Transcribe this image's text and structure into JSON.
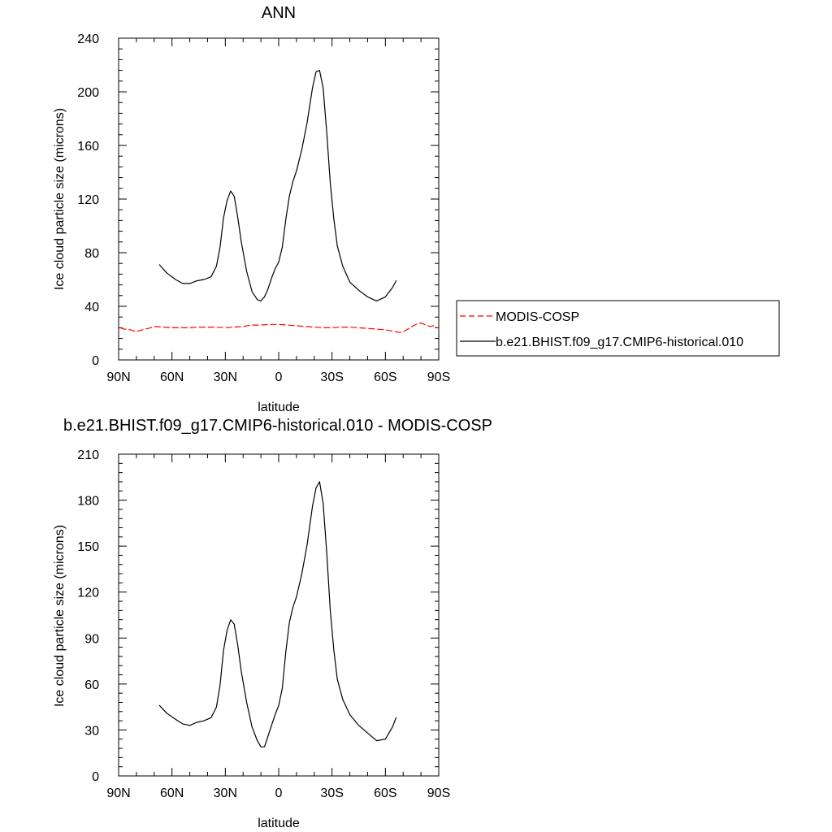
{
  "chart_data": [
    {
      "type": "line",
      "title": "ANN",
      "xlabel": "latitude",
      "ylabel": "Ice cloud particle size (microns)",
      "xlim": [
        90,
        -90
      ],
      "ylim": [
        0,
        240
      ],
      "x_ticks": [
        90,
        60,
        30,
        0,
        -30,
        -60,
        -90
      ],
      "x_tick_labels": [
        "90N",
        "60N",
        "30N",
        "0",
        "30S",
        "60S",
        "90S"
      ],
      "y_ticks": [
        0,
        40,
        80,
        120,
        160,
        200,
        240
      ],
      "y_tick_labels": [
        "0",
        "40",
        "80",
        "120",
        "160",
        "200",
        "240"
      ],
      "legend": "outside-right",
      "series": [
        {
          "name": "MODIS-COSP",
          "color": "#ff0000",
          "dash": true,
          "x": [
            89,
            87,
            85,
            82,
            80,
            78,
            75,
            72,
            70,
            65,
            60,
            55,
            50,
            45,
            40,
            35,
            30,
            25,
            20,
            15,
            10,
            5,
            0,
            -5,
            -10,
            -15,
            -20,
            -25,
            -30,
            -35,
            -40,
            -45,
            -50,
            -55,
            -60,
            -62,
            -64,
            -66,
            -68,
            -70,
            -72,
            -75,
            -78,
            -80,
            -82,
            -85,
            -87,
            -89
          ],
          "y": [
            24,
            23,
            23,
            22,
            21,
            22,
            23,
            24,
            25,
            24.5,
            24,
            24,
            24,
            24.5,
            24.5,
            24.5,
            24,
            24.5,
            25,
            26,
            26,
            26.5,
            26.5,
            26,
            25.5,
            25,
            24.5,
            24,
            24,
            24.5,
            24.5,
            24,
            23.5,
            23,
            22.5,
            22,
            21.5,
            21,
            20.5,
            21,
            22.5,
            25,
            27,
            27.5,
            26.5,
            25,
            25.5,
            24
          ]
        },
        {
          "name": "b.e21.BHIST.f09_g17.CMIP6-historical.010",
          "color": "#000000",
          "dash": false,
          "x": [
            67,
            63,
            58,
            54,
            50,
            46,
            42,
            38,
            35,
            33,
            31,
            29,
            27,
            25,
            23,
            21,
            18,
            15,
            12,
            10,
            8,
            6,
            4,
            2,
            0,
            -2,
            -4,
            -6,
            -8,
            -10,
            -13,
            -16,
            -19,
            -21,
            -23,
            -25,
            -27,
            -29,
            -31,
            -33,
            -36,
            -40,
            -45,
            -50,
            -55,
            -60,
            -64,
            -66
          ],
          "y": [
            71,
            65,
            60,
            57,
            57,
            59,
            60,
            62,
            70,
            84,
            106,
            119,
            126,
            122,
            106,
            88,
            66,
            51,
            45,
            44,
            47,
            53,
            61,
            68,
            73,
            84,
            105,
            122,
            133,
            141,
            157,
            177,
            203,
            215,
            216,
            203,
            170,
            132,
            105,
            85,
            70,
            58,
            52,
            47,
            44,
            47,
            54,
            59
          ]
        }
      ]
    },
    {
      "type": "line",
      "title": "b.e21.BHIST.f09_g17.CMIP6-historical.010 - MODIS-COSP",
      "xlabel": "latitude",
      "ylabel": "Ice cloud particle size (microns)",
      "xlim": [
        90,
        -90
      ],
      "ylim": [
        0,
        210
      ],
      "x_ticks": [
        90,
        60,
        30,
        0,
        -30,
        -60,
        -90
      ],
      "x_tick_labels": [
        "90N",
        "60N",
        "30N",
        "0",
        "30S",
        "60S",
        "90S"
      ],
      "y_ticks": [
        0,
        30,
        60,
        90,
        120,
        150,
        180,
        210
      ],
      "y_tick_labels": [
        "0",
        "30",
        "60",
        "90",
        "120",
        "150",
        "180",
        "210"
      ],
      "series": [
        {
          "color": "#000000",
          "dash": false,
          "x": [
            67,
            63,
            58,
            54,
            50,
            46,
            42,
            38,
            35,
            33,
            31,
            29,
            27,
            25,
            23,
            21,
            18,
            15,
            12,
            10,
            8,
            6,
            4,
            2,
            0,
            -2,
            -4,
            -6,
            -8,
            -10,
            -13,
            -16,
            -19,
            -21,
            -23,
            -25,
            -27,
            -29,
            -31,
            -33,
            -36,
            -40,
            -45,
            -50,
            -55,
            -60,
            -64,
            -66
          ],
          "y": [
            46,
            41,
            37,
            34,
            33,
            35,
            36,
            38,
            45,
            59,
            82,
            95,
            102,
            99,
            85,
            68,
            48,
            32,
            23,
            19,
            19,
            26,
            33,
            40,
            46,
            57,
            81,
            100,
            110,
            117,
            132,
            151,
            176,
            188,
            192,
            178,
            146,
            108,
            82,
            63,
            50,
            40,
            33,
            28,
            23,
            24,
            32,
            38
          ]
        }
      ]
    }
  ]
}
